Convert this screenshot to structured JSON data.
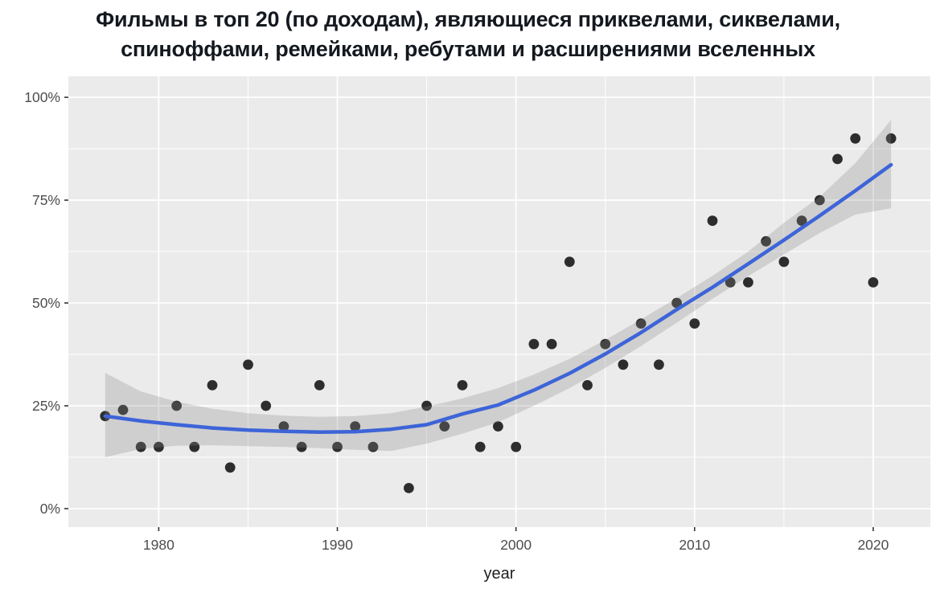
{
  "title": {
    "line1": "Фильмы в топ 20 (по доходам), являющиеся приквелами, сиквелами,",
    "line2": "спиноффами, ремейками, ребутами и расширениями вселенных"
  },
  "chart_data": {
    "type": "scatter",
    "title": "Фильмы в топ 20 (по доходам), являющиеся приквелами, сиквелами, спиноффами, ремейками, ребутами и расширениями вселенных",
    "xlabel": "year",
    "ylabel": "",
    "xlim": [
      1974.94,
      2023.2
    ],
    "ylim": [
      -4.5,
      105.1
    ],
    "grid": "on",
    "legend_position": "none",
    "x_major_ticks": [
      1980,
      1990,
      2000,
      2010,
      2020
    ],
    "x_tick_labels": [
      "1980",
      "1990",
      "2000",
      "2010",
      "2020"
    ],
    "x_minor_ticks": [
      1985,
      1995,
      2005,
      2015
    ],
    "y_major_ticks": [
      0,
      25,
      50,
      75,
      100
    ],
    "y_tick_labels": [
      "0%",
      "25%",
      "50%",
      "75%",
      "100%"
    ],
    "y_minor_ticks": [
      12.5,
      37.5,
      62.5,
      87.5
    ],
    "points": {
      "x": [
        1977,
        1978,
        1979,
        1980,
        1981,
        1982,
        1983,
        1984,
        1985,
        1986,
        1987,
        1988,
        1989,
        1990,
        1991,
        1992,
        1994,
        1995,
        1996,
        1997,
        1998,
        1999,
        2000,
        2001,
        2002,
        2003,
        2004,
        2005,
        2006,
        2007,
        2008,
        2009,
        2010,
        2011,
        2012,
        2013,
        2014,
        2015,
        2016,
        2017,
        2018,
        2019,
        2020,
        2021
      ],
      "y": [
        22.5,
        24,
        15,
        15,
        25,
        15,
        30,
        10,
        35,
        25,
        20,
        15,
        30,
        15,
        20,
        15,
        5,
        25,
        20,
        30,
        15,
        20,
        15,
        40,
        40,
        60,
        30,
        40,
        35,
        45,
        35,
        50,
        45,
        70,
        55,
        55,
        65,
        60,
        70,
        75,
        85,
        90,
        55,
        90
      ]
    },
    "smooth": {
      "x": [
        1977,
        1979,
        1981,
        1983,
        1985,
        1987,
        1989,
        1991,
        1993,
        1995,
        1997,
        1999,
        2001,
        2003,
        2005,
        2007,
        2009,
        2011,
        2013,
        2015,
        2017,
        2019,
        2021
      ],
      "y": [
        22.5,
        21.3,
        20.4,
        19.6,
        19.1,
        18.8,
        18.6,
        18.7,
        19.3,
        20.4,
        23.0,
        25.2,
        28.8,
        32.9,
        37.6,
        42.8,
        48.4,
        53.8,
        59.5,
        65.3,
        71.2,
        77.3,
        83.6
      ],
      "upper": [
        33.0,
        28.5,
        26.0,
        24.3,
        23.2,
        22.6,
        22.3,
        22.5,
        23.2,
        24.8,
        26.8,
        29.3,
        32.6,
        36.4,
        41.0,
        46.0,
        51.2,
        56.6,
        62.5,
        69.5,
        75.8,
        84.0,
        94.5
      ],
      "lower": [
        12.5,
        14.5,
        15.3,
        15.4,
        15.2,
        15.0,
        14.7,
        14.3,
        14.0,
        15.8,
        18.2,
        21.0,
        25.0,
        29.3,
        34.2,
        39.5,
        45.2,
        51.0,
        56.5,
        61.8,
        67.0,
        71.5,
        73.0
      ]
    }
  },
  "colors": {
    "panel_background": "#ebebeb",
    "gridline": "#ffffff",
    "point": "#1c1c1c",
    "smooth_line": "#3d64d8",
    "confidence_band": "#8a8a8a",
    "axis_text": "#4d4d4d",
    "axis_title": "#1f1f1f",
    "tick_mark": "#333333",
    "title_text": "#14181f"
  }
}
